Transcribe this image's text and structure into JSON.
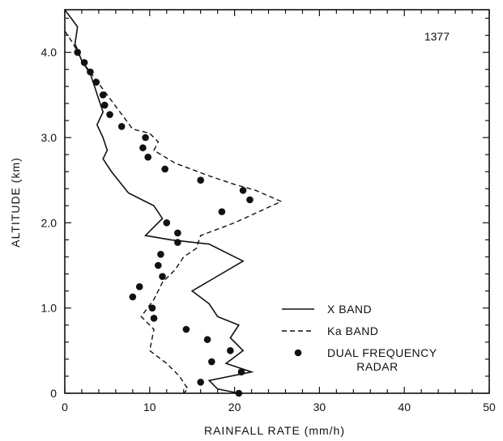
{
  "chart_data": {
    "type": "line",
    "annotation": "1377",
    "xlabel": "RAINFALL RATE (mm/h)",
    "ylabel": "ALTITUDE (km)",
    "xlim": [
      0,
      50
    ],
    "ylim": [
      0,
      4.5
    ],
    "x_ticks": [
      0,
      10,
      20,
      30,
      40,
      50
    ],
    "x_tick_labels": [
      "0",
      "10",
      "20",
      "30",
      "40",
      "50"
    ],
    "y_ticks": [
      0,
      1,
      2,
      3,
      4
    ],
    "y_tick_labels": [
      "0",
      "1.0",
      "2.0",
      "3.0",
      "4.0"
    ],
    "grid": false,
    "legend_position": "lower-right",
    "series": [
      {
        "name": "X BAND",
        "style": "solid",
        "color": "#111111",
        "points": [
          [
            0.0,
            4.5
          ],
          [
            1.5,
            4.3
          ],
          [
            1.2,
            4.1
          ],
          [
            2.0,
            3.9
          ],
          [
            3.0,
            3.75
          ],
          [
            3.5,
            3.6
          ],
          [
            4.0,
            3.45
          ],
          [
            4.5,
            3.3
          ],
          [
            3.8,
            3.15
          ],
          [
            4.5,
            3.0
          ],
          [
            5.0,
            2.85
          ],
          [
            4.5,
            2.75
          ],
          [
            5.5,
            2.6
          ],
          [
            7.5,
            2.35
          ],
          [
            10.5,
            2.2
          ],
          [
            11.5,
            2.05
          ],
          [
            10.5,
            1.95
          ],
          [
            9.5,
            1.85
          ],
          [
            12.5,
            1.8
          ],
          [
            17.0,
            1.75
          ],
          [
            21.0,
            1.55
          ],
          [
            15.0,
            1.2
          ],
          [
            17.0,
            1.05
          ],
          [
            18.0,
            0.9
          ],
          [
            20.5,
            0.8
          ],
          [
            19.5,
            0.65
          ],
          [
            21.0,
            0.5
          ],
          [
            19.0,
            0.35
          ],
          [
            22.0,
            0.25
          ],
          [
            17.0,
            0.15
          ],
          [
            18.0,
            0.05
          ],
          [
            20.5,
            0.0
          ]
        ]
      },
      {
        "name": "Ka BAND",
        "style": "dashed",
        "color": "#111111",
        "points": [
          [
            0.0,
            4.25
          ],
          [
            1.0,
            4.1
          ],
          [
            2.0,
            3.9
          ],
          [
            3.5,
            3.7
          ],
          [
            5.0,
            3.5
          ],
          [
            6.5,
            3.3
          ],
          [
            8.0,
            3.1
          ],
          [
            10.0,
            3.05
          ],
          [
            11.0,
            2.95
          ],
          [
            10.5,
            2.85
          ],
          [
            13.0,
            2.7
          ],
          [
            17.0,
            2.55
          ],
          [
            20.0,
            2.45
          ],
          [
            22.5,
            2.38
          ],
          [
            25.5,
            2.25
          ],
          [
            20.0,
            2.0
          ],
          [
            16.0,
            1.85
          ],
          [
            15.5,
            1.7
          ],
          [
            14.0,
            1.6
          ],
          [
            13.0,
            1.45
          ],
          [
            11.5,
            1.3
          ],
          [
            10.5,
            1.1
          ],
          [
            9.0,
            0.9
          ],
          [
            10.5,
            0.75
          ],
          [
            10.0,
            0.5
          ],
          [
            12.0,
            0.35
          ],
          [
            13.5,
            0.2
          ],
          [
            14.5,
            0.05
          ],
          [
            14.0,
            0.0
          ]
        ]
      },
      {
        "name": "DUAL FREQUENCY RADAR",
        "style": "markers",
        "color": "#111111",
        "points": [
          [
            1.5,
            4.0
          ],
          [
            2.3,
            3.88
          ],
          [
            3.0,
            3.77
          ],
          [
            3.7,
            3.65
          ],
          [
            4.5,
            3.5
          ],
          [
            4.7,
            3.38
          ],
          [
            5.3,
            3.27
          ],
          [
            6.7,
            3.13
          ],
          [
            9.5,
            3.0
          ],
          [
            9.2,
            2.88
          ],
          [
            9.8,
            2.77
          ],
          [
            11.8,
            2.63
          ],
          [
            16.0,
            2.5
          ],
          [
            21.0,
            2.38
          ],
          [
            21.8,
            2.27
          ],
          [
            18.5,
            2.13
          ],
          [
            12.0,
            2.0
          ],
          [
            13.3,
            1.88
          ],
          [
            13.3,
            1.77
          ],
          [
            11.3,
            1.63
          ],
          [
            11.0,
            1.5
          ],
          [
            11.5,
            1.37
          ],
          [
            8.8,
            1.25
          ],
          [
            8.0,
            1.13
          ],
          [
            10.3,
            1.0
          ],
          [
            10.5,
            0.88
          ],
          [
            14.3,
            0.75
          ],
          [
            16.8,
            0.63
          ],
          [
            19.5,
            0.5
          ],
          [
            17.3,
            0.37
          ],
          [
            20.8,
            0.25
          ],
          [
            16.0,
            0.13
          ],
          [
            20.5,
            0.0
          ]
        ]
      }
    ],
    "legend_entries": [
      {
        "label": "X BAND",
        "style": "solid"
      },
      {
        "label": "Ka BAND",
        "style": "dashed"
      },
      {
        "label_lines": [
          "DUAL FREQUENCY",
          "RADAR"
        ],
        "style": "markers"
      }
    ]
  }
}
